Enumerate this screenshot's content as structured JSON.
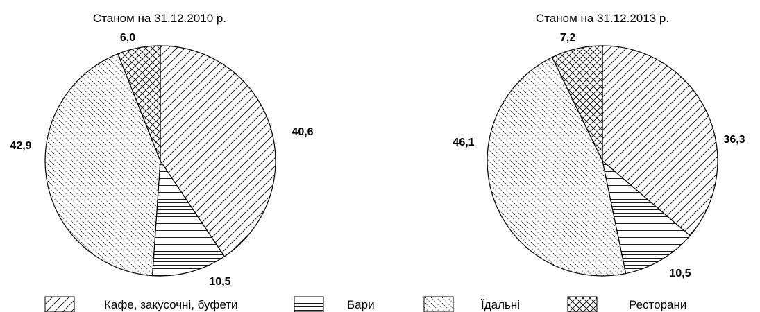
{
  "chart_data": [
    {
      "type": "pie",
      "title": "Станом на 31.12.2010 р.",
      "categories": [
        "Кафе, закусочні, буфети",
        "Бари",
        "Їдальні",
        "Ресторани"
      ],
      "values": [
        40.6,
        10.5,
        42.9,
        6.0
      ],
      "labels": [
        "40,6",
        "10,5",
        "42,9",
        "6,0"
      ],
      "start_angle": "top",
      "direction": "clockwise"
    },
    {
      "type": "pie",
      "title": "Станом на 31.12.2013 р.",
      "categories": [
        "Кафе, закусочні, буфети",
        "Бари",
        "Їдальні",
        "Ресторани"
      ],
      "values": [
        36.3,
        10.5,
        46.1,
        7.2
      ],
      "labels": [
        "36,3",
        "10,5",
        "46,1",
        "7,2"
      ],
      "start_angle": "top",
      "direction": "clockwise"
    }
  ],
  "legend": {
    "placement": "bottom",
    "items": [
      {
        "label": "Кафе, закусочні, буфети",
        "pattern": "diagonal-forward"
      },
      {
        "label": "Бари",
        "pattern": "horizontal"
      },
      {
        "label": "Їдальні",
        "pattern": "dotted-diagonal-back"
      },
      {
        "label": "Ресторани",
        "pattern": "crosshatch"
      }
    ]
  },
  "colors": {
    "stroke": "#000000",
    "fill": "#ffffff"
  }
}
